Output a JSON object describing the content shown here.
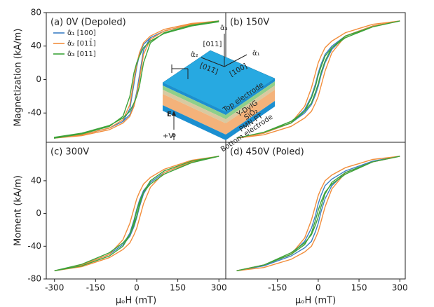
{
  "chart_data": [
    {
      "type": "line",
      "title": "(a) 0V (Depoled)",
      "ylabel": "Magnetization (kA/m)",
      "x": [
        300,
        200,
        100,
        50,
        25,
        10,
        0,
        -10,
        -25,
        -50,
        -100,
        -200,
        -300,
        -300,
        -200,
        -100,
        -50,
        -25,
        -10,
        0,
        10,
        25,
        50,
        100,
        200,
        300
      ],
      "series": [
        {
          "name": "α̂₁ [100]",
          "color": "#3b7fc4",
          "values": [
            70,
            66,
            58,
            50,
            42,
            30,
            15,
            -5,
            -35,
            -50,
            -58,
            -66,
            -70,
            -70,
            -66,
            -58,
            -50,
            -42,
            -30,
            -15,
            5,
            35,
            50,
            58,
            66,
            70
          ]
        },
        {
          "name": "α̂₂ [011̄]",
          "color": "#f28e3c",
          "values": [
            70,
            67,
            60,
            52,
            44,
            32,
            18,
            0,
            -30,
            -48,
            -58,
            -66,
            -70,
            -70,
            -67,
            -60,
            -52,
            -44,
            -32,
            -18,
            0,
            30,
            48,
            58,
            66,
            70
          ]
        },
        {
          "name": "α̂₃ [011]",
          "color": "#3ea33a",
          "values": [
            69,
            64,
            55,
            46,
            38,
            28,
            20,
            8,
            -20,
            -44,
            -56,
            -65,
            -70,
            -69,
            -64,
            -55,
            -46,
            -38,
            -28,
            -20,
            -8,
            20,
            44,
            56,
            65,
            70
          ]
        }
      ],
      "xlim": [
        -330,
        325
      ],
      "ylim": [
        -75,
        80
      ],
      "yticks": [
        -40,
        0,
        40,
        80
      ],
      "legend": "upper left"
    },
    {
      "type": "line",
      "title": "(b) 150V",
      "x": [
        300,
        200,
        100,
        50,
        25,
        10,
        0,
        -10,
        -25,
        -50,
        -100,
        -200,
        -300,
        -300,
        -200,
        -100,
        -50,
        -25,
        -10,
        0,
        10,
        25,
        50,
        100,
        200,
        300
      ],
      "series": [
        {
          "color": "#3b7fc4",
          "values": [
            70,
            64,
            52,
            40,
            30,
            18,
            8,
            -5,
            -20,
            -36,
            -52,
            -64,
            -70,
            -70,
            -64,
            -52,
            -40,
            -30,
            -18,
            -8,
            5,
            20,
            36,
            52,
            64,
            70
          ]
        },
        {
          "color": "#f28e3c",
          "values": [
            70,
            66,
            56,
            46,
            38,
            28,
            20,
            8,
            -10,
            -32,
            -52,
            -64,
            -70,
            -70,
            -66,
            -56,
            -46,
            -38,
            -28,
            -20,
            -8,
            10,
            32,
            52,
            64,
            70
          ]
        },
        {
          "color": "#3ea33a",
          "values": [
            70,
            63,
            50,
            38,
            28,
            15,
            5,
            -8,
            -22,
            -38,
            -52,
            -63,
            -70,
            -70,
            -63,
            -50,
            -38,
            -28,
            -15,
            -5,
            8,
            22,
            38,
            52,
            63,
            70
          ]
        }
      ],
      "xlim": [
        -340,
        320
      ],
      "ylim": [
        -75,
        80
      ]
    },
    {
      "type": "line",
      "title": "(c) 300V",
      "ylabel": "Moment (kA/m)",
      "xlabel": "μₒH (mT)",
      "x": [
        300,
        200,
        100,
        50,
        25,
        10,
        0,
        -10,
        -25,
        -50,
        -100,
        -200,
        -300,
        -300,
        -200,
        -100,
        -50,
        -25,
        -10,
        0,
        10,
        25,
        50,
        100,
        200,
        300
      ],
      "series": [
        {
          "color": "#3b7fc4",
          "values": [
            70,
            63,
            50,
            38,
            28,
            16,
            5,
            -8,
            -24,
            -38,
            -50,
            -63,
            -70,
            -70,
            -63,
            -50,
            -38,
            -28,
            -16,
            -5,
            8,
            24,
            38,
            50,
            63,
            70
          ]
        },
        {
          "color": "#f28e3c",
          "values": [
            70,
            65,
            54,
            44,
            36,
            26,
            18,
            6,
            -12,
            -32,
            -50,
            -63,
            -70,
            -70,
            -65,
            -54,
            -44,
            -36,
            -26,
            -18,
            -6,
            12,
            32,
            50,
            63,
            70
          ]
        },
        {
          "color": "#3ea33a",
          "values": [
            70,
            62,
            48,
            36,
            26,
            14,
            3,
            -10,
            -26,
            -40,
            -52,
            -64,
            -70,
            -70,
            -62,
            -48,
            -36,
            -26,
            -14,
            -3,
            10,
            26,
            40,
            52,
            64,
            70
          ]
        }
      ],
      "xlim": [
        -330,
        325
      ],
      "ylim": [
        -80,
        87
      ],
      "yticks": [
        -80,
        -40,
        0,
        40
      ],
      "xticks": [
        -300,
        -150,
        0,
        150,
        300
      ]
    },
    {
      "type": "line",
      "title": "(d) 450V (Poled)",
      "xlabel": "μₒH (mT)",
      "x": [
        300,
        200,
        100,
        50,
        25,
        10,
        0,
        -10,
        -25,
        -50,
        -100,
        -200,
        -300,
        -300,
        -200,
        -100,
        -50,
        -25,
        -10,
        0,
        10,
        25,
        50,
        100,
        200,
        300
      ],
      "series": [
        {
          "color": "#3b7fc4",
          "values": [
            70,
            64,
            52,
            42,
            34,
            22,
            12,
            -2,
            -18,
            -34,
            -50,
            -63,
            -70,
            -70,
            -64,
            -52,
            -42,
            -34,
            -22,
            -12,
            2,
            18,
            34,
            50,
            63,
            70
          ]
        },
        {
          "color": "#f28e3c",
          "values": [
            70,
            66,
            56,
            47,
            40,
            30,
            22,
            10,
            -8,
            -30,
            -50,
            -63,
            -70,
            -70,
            -66,
            -56,
            -47,
            -40,
            -30,
            -22,
            -10,
            8,
            30,
            50,
            63,
            70
          ]
        },
        {
          "color": "#3ea33a",
          "values": [
            70,
            63,
            48,
            36,
            26,
            14,
            4,
            -8,
            -24,
            -38,
            -50,
            -63,
            -70,
            -70,
            -63,
            -48,
            -36,
            -26,
            -14,
            -4,
            8,
            24,
            38,
            50,
            63,
            70
          ]
        }
      ],
      "xlim": [
        -340,
        320
      ],
      "ylim": [
        -80,
        87
      ],
      "xticks": [
        -150,
        0,
        150,
        300
      ]
    }
  ],
  "inset": {
    "layers": [
      "Top electrode",
      "Y-DyIG",
      "SiO₂",
      "PMN-PT",
      "Bottom electrode"
    ],
    "field": "E",
    "voltage": "+V",
    "axes": [
      "α̂₁",
      "α̂₂",
      "α̂₃"
    ],
    "directions": [
      "[100]",
      "[011̄]",
      "[011]"
    ]
  }
}
